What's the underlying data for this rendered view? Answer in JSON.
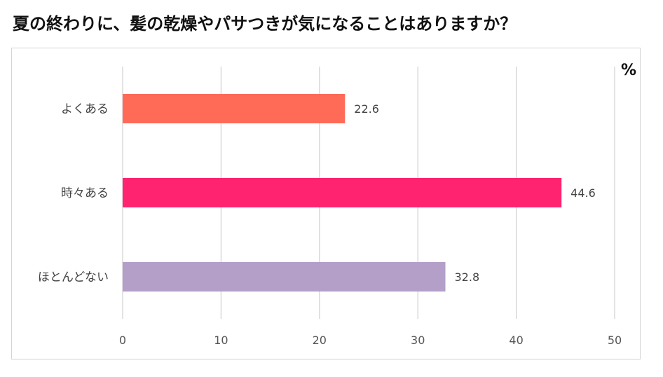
{
  "title": "夏の終わりに、髪の乾燥やパサつきが気になることはありますか？",
  "unit": "%",
  "chart_data": {
    "type": "bar",
    "orientation": "horizontal",
    "categories": [
      "よくある",
      "時々ある",
      "ほとんどない"
    ],
    "values": [
      22.6,
      44.6,
      32.8
    ],
    "colors": [
      "#ff6b57",
      "#ff2370",
      "#b49fc8"
    ],
    "xlim": [
      0,
      50
    ],
    "xticks": [
      0,
      10,
      20,
      30,
      40,
      50
    ],
    "grid": true,
    "legend": "none",
    "unit": "%"
  }
}
